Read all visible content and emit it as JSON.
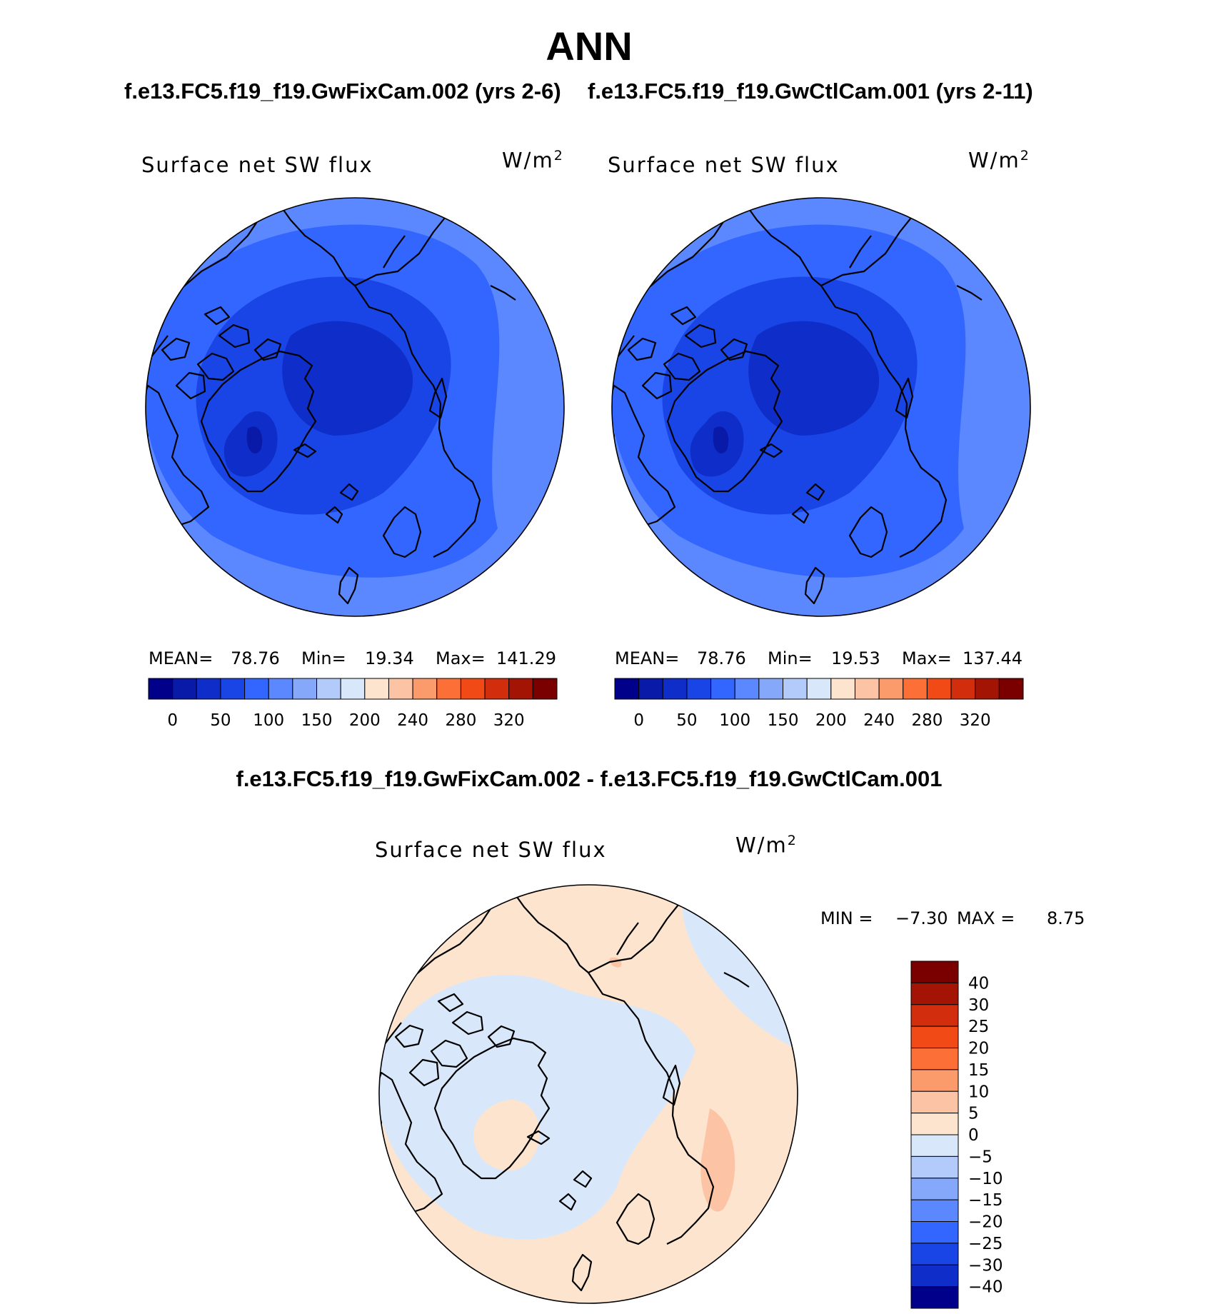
{
  "page": {
    "title": "ANN",
    "case_a": "f.e13.FC5.f19_f19.GwFixCam.002 (yrs 2-6)",
    "case_b": "f.e13.FC5.f19_f19.GwCtlCam.001 (yrs 2-11)",
    "diff_title": "f.e13.FC5.f19_f19.GwFixCam.002 - f.e13.FC5.f19_f19.GwCtlCam.001"
  },
  "chart_data": [
    {
      "type": "heatmap",
      "projection": "north-polar-stereographic",
      "title": "Surface net SW flux",
      "units": "W/m",
      "units_sup": "2",
      "stats": {
        "mean_label": "MEAN=",
        "mean": "78.76",
        "min_label": "Min=",
        "min": "19.34",
        "max_label": "Max=",
        "max": "141.29"
      },
      "colorbar": {
        "orientation": "horizontal",
        "colors": [
          "#00008b",
          "#0a1aa8",
          "#0f2dc8",
          "#1a45e6",
          "#3366ff",
          "#5b88ff",
          "#86a8fa",
          "#b3cbfa",
          "#d8e8fa",
          "#fce4cf",
          "#fcc3a4",
          "#fb9a6b",
          "#fc7038",
          "#f24a16",
          "#d22d0c",
          "#a31405",
          "#7a0000"
        ],
        "tick_labels": [
          "0",
          "50",
          "100",
          "150",
          "200",
          "240",
          "280",
          "320"
        ]
      }
    },
    {
      "type": "heatmap",
      "projection": "north-polar-stereographic",
      "title": "Surface net SW flux",
      "units": "W/m",
      "units_sup": "2",
      "stats": {
        "mean_label": "MEAN=",
        "mean": "78.76",
        "min_label": "Min=",
        "min": "19.53",
        "max_label": "Max=",
        "max": "137.44"
      },
      "colorbar": {
        "orientation": "horizontal",
        "colors": [
          "#00008b",
          "#0a1aa8",
          "#0f2dc8",
          "#1a45e6",
          "#3366ff",
          "#5b88ff",
          "#86a8fa",
          "#b3cbfa",
          "#d8e8fa",
          "#fce4cf",
          "#fcc3a4",
          "#fb9a6b",
          "#fc7038",
          "#f24a16",
          "#d22d0c",
          "#a31405",
          "#7a0000"
        ],
        "tick_labels": [
          "0",
          "50",
          "100",
          "150",
          "200",
          "240",
          "280",
          "320"
        ]
      }
    },
    {
      "type": "heatmap",
      "projection": "north-polar-stereographic",
      "title": "Surface net SW flux",
      "units": "W/m",
      "units_sup": "2",
      "stats": {
        "min_label": "MIN =",
        "min": "−7.30",
        "max_label": "MAX =",
        "max": "8.75"
      },
      "colorbar": {
        "orientation": "vertical",
        "colors": [
          "#7a0000",
          "#a31405",
          "#d22d0c",
          "#f24a16",
          "#fc7038",
          "#fb9a6b",
          "#fcc3a4",
          "#fce4cf",
          "#d8e8fa",
          "#b3cbfa",
          "#86a8fa",
          "#5b88ff",
          "#3366ff",
          "#1a45e6",
          "#0f2dc8",
          "#00008b"
        ],
        "tick_labels": [
          "40",
          "30",
          "25",
          "20",
          "15",
          "10",
          "5",
          "0",
          "−5",
          "−10",
          "−15",
          "−20",
          "−25",
          "−30",
          "−40"
        ]
      }
    }
  ]
}
